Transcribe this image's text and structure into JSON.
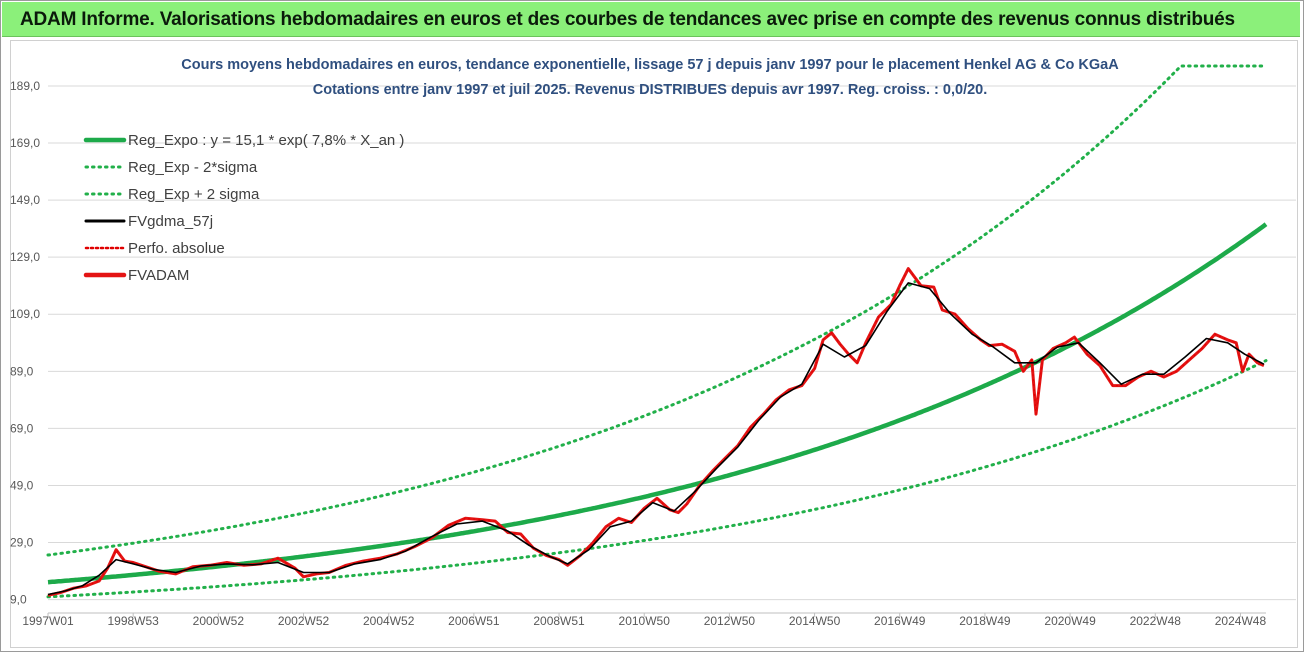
{
  "banner": {
    "title": "ADAM Informe. Valorisations hebdomadaires en euros et des courbes de tendances avec prise en compte des revenus connus distribués"
  },
  "colors": {
    "banner_bg": "#8bf07a",
    "reg_expo": "#1daa4a",
    "sigma_band": "#22b04a",
    "fvgdma": "#000000",
    "perfo": "#e00000",
    "fvadam": "#e41414",
    "title": "#2f4f7f"
  },
  "chart_data": {
    "type": "line",
    "title": "Cours moyens hebdomadaires en euros, tendance exponentielle, lissage 57 j depuis janv 1997  pour le placement Henkel AG & Co KGaA",
    "subtitle": "Cotations entre janv 1997 et juil 2025. Revenus DISTRIBUES depuis avr 1997.  Reg. croiss. : 0,0/20.",
    "xlabel": "",
    "ylabel": "",
    "ylim": [
      5.0,
      196.0
    ],
    "xlim": [
      1997.0,
      2025.6
    ],
    "y_ticks": [
      "9,0",
      "29,0",
      "49,0",
      "69,0",
      "89,0",
      "109,0",
      "129,0",
      "149,0",
      "169,0",
      "189,0"
    ],
    "y_tick_values": [
      9,
      29,
      49,
      69,
      89,
      109,
      129,
      149,
      169,
      189
    ],
    "x_ticks": [
      "1997W01",
      "1998W53",
      "2000W52",
      "2002W52",
      "2004W52",
      "2006W51",
      "2008W51",
      "2010W50",
      "2012W50",
      "2014W50",
      "2016W49",
      "2018W49",
      "2020W49",
      "2022W48",
      "2024W48"
    ],
    "x_tick_years": [
      1997.0,
      1999.0,
      2001.0,
      2003.0,
      2005.0,
      2007.0,
      2009.0,
      2011.0,
      2013.0,
      2015.0,
      2017.0,
      2019.0,
      2021.0,
      2023.0,
      2025.0
    ],
    "grid": true,
    "legend_position": "top-left",
    "legend": [
      "Reg_Expo : y = 15,1 * exp( 7,8% *  X_an )",
      "Reg_Exp - 2*sigma",
      "Reg_Exp + 2 sigma",
      "FVgdma_57j",
      "Perfo. absolue",
      "FVADAM"
    ],
    "regression": {
      "a": 15.1,
      "rate": 0.078,
      "start_year": 1997.0,
      "lower_factor": 0.66,
      "upper_factor": 1.63,
      "upper_cap": 196.0
    },
    "series": [
      {
        "name": "FVADAM",
        "x": [
          1997.0,
          1997.3,
          1997.6,
          1997.9,
          1998.2,
          1998.4,
          1998.6,
          1998.8,
          1999.0,
          1999.3,
          1999.6,
          2000.0,
          2000.4,
          2000.8,
          2001.2,
          2001.6,
          2002.0,
          2002.4,
          2002.8,
          2003.0,
          2003.3,
          2003.6,
          2004.0,
          2004.4,
          2004.8,
          2005.2,
          2005.6,
          2006.0,
          2006.4,
          2006.8,
          2007.2,
          2007.5,
          2007.8,
          2008.1,
          2008.4,
          2008.7,
          2009.0,
          2009.2,
          2009.5,
          2009.8,
          2010.1,
          2010.4,
          2010.7,
          2011.0,
          2011.3,
          2011.6,
          2011.8,
          2012.0,
          2012.3,
          2012.6,
          2012.9,
          2013.2,
          2013.5,
          2013.8,
          2014.1,
          2014.4,
          2014.7,
          2015.0,
          2015.2,
          2015.4,
          2015.6,
          2015.8,
          2016.0,
          2016.2,
          2016.5,
          2016.8,
          2017.0,
          2017.2,
          2017.5,
          2017.8,
          2018.0,
          2018.3,
          2018.6,
          2018.9,
          2019.1,
          2019.4,
          2019.7,
          2019.9,
          2020.1,
          2020.2,
          2020.35,
          2020.6,
          2020.9,
          2021.1,
          2021.4,
          2021.7,
          2022.0,
          2022.3,
          2022.6,
          2022.9,
          2023.2,
          2023.5,
          2023.8,
          2024.1,
          2024.4,
          2024.7,
          2024.9,
          2025.05,
          2025.2,
          2025.4,
          2025.55
        ],
        "y": [
          10.5,
          11.5,
          13.0,
          13.8,
          15.5,
          20.0,
          26.5,
          22.5,
          22.0,
          20.5,
          19.0,
          18.0,
          20.5,
          21.0,
          22.0,
          21.0,
          21.5,
          23.5,
          20.0,
          17.0,
          18.0,
          18.5,
          21.0,
          22.5,
          23.5,
          25.0,
          27.5,
          30.5,
          35.0,
          37.5,
          37.0,
          36.5,
          32.5,
          32.0,
          27.0,
          24.5,
          23.0,
          21.0,
          24.5,
          29.0,
          34.5,
          37.5,
          36.0,
          41.0,
          44.5,
          40.5,
          39.5,
          42.5,
          49.0,
          54.0,
          58.5,
          63.0,
          69.5,
          74.0,
          79.0,
          82.5,
          84.0,
          90.0,
          100.0,
          102.5,
          98.5,
          95.0,
          92.0,
          99.0,
          108.0,
          112.5,
          119.0,
          125.0,
          119.0,
          118.5,
          110.5,
          109.0,
          104.0,
          100.0,
          98.0,
          98.5,
          96.0,
          89.0,
          93.0,
          74.0,
          93.0,
          97.0,
          99.0,
          101.0,
          95.0,
          91.0,
          84.0,
          84.0,
          87.0,
          89.0,
          87.0,
          89.0,
          93.0,
          97.0,
          102.0,
          100.0,
          99.0,
          89.0,
          95.0,
          92.0,
          91.0
        ]
      },
      {
        "name": "FVgdma_57j",
        "x": [
          1997.0,
          1997.4,
          1997.8,
          1998.2,
          1998.6,
          1999.0,
          1999.5,
          2000.0,
          2000.6,
          2001.2,
          2001.8,
          2002.4,
          2003.0,
          2003.6,
          2004.2,
          2004.8,
          2005.4,
          2006.0,
          2006.6,
          2007.2,
          2007.8,
          2008.3,
          2008.8,
          2009.2,
          2009.7,
          2010.2,
          2010.7,
          2011.2,
          2011.7,
          2012.2,
          2012.7,
          2013.2,
          2013.7,
          2014.2,
          2014.7,
          2015.2,
          2015.7,
          2016.2,
          2016.7,
          2017.2,
          2017.7,
          2018.2,
          2018.7,
          2019.2,
          2019.7,
          2020.2,
          2020.7,
          2021.2,
          2021.7,
          2022.2,
          2022.7,
          2023.2,
          2023.7,
          2024.2,
          2024.7,
          2025.1,
          2025.55
        ],
        "y": [
          10.8,
          12.0,
          13.8,
          17.5,
          23.0,
          21.5,
          19.5,
          18.5,
          20.8,
          21.5,
          21.2,
          22.0,
          18.5,
          18.5,
          21.5,
          23.0,
          26.0,
          31.0,
          35.5,
          36.5,
          33.0,
          28.0,
          24.0,
          21.5,
          26.5,
          34.5,
          36.5,
          43.0,
          40.0,
          47.0,
          55.0,
          62.5,
          72.0,
          80.0,
          84.5,
          98.5,
          94.0,
          98.0,
          110.0,
          120.0,
          118.0,
          109.0,
          102.0,
          97.5,
          92.0,
          92.0,
          97.5,
          99.0,
          92.0,
          84.5,
          88.0,
          88.0,
          94.0,
          100.5,
          99.0,
          95.0,
          91.5
        ]
      }
    ]
  }
}
